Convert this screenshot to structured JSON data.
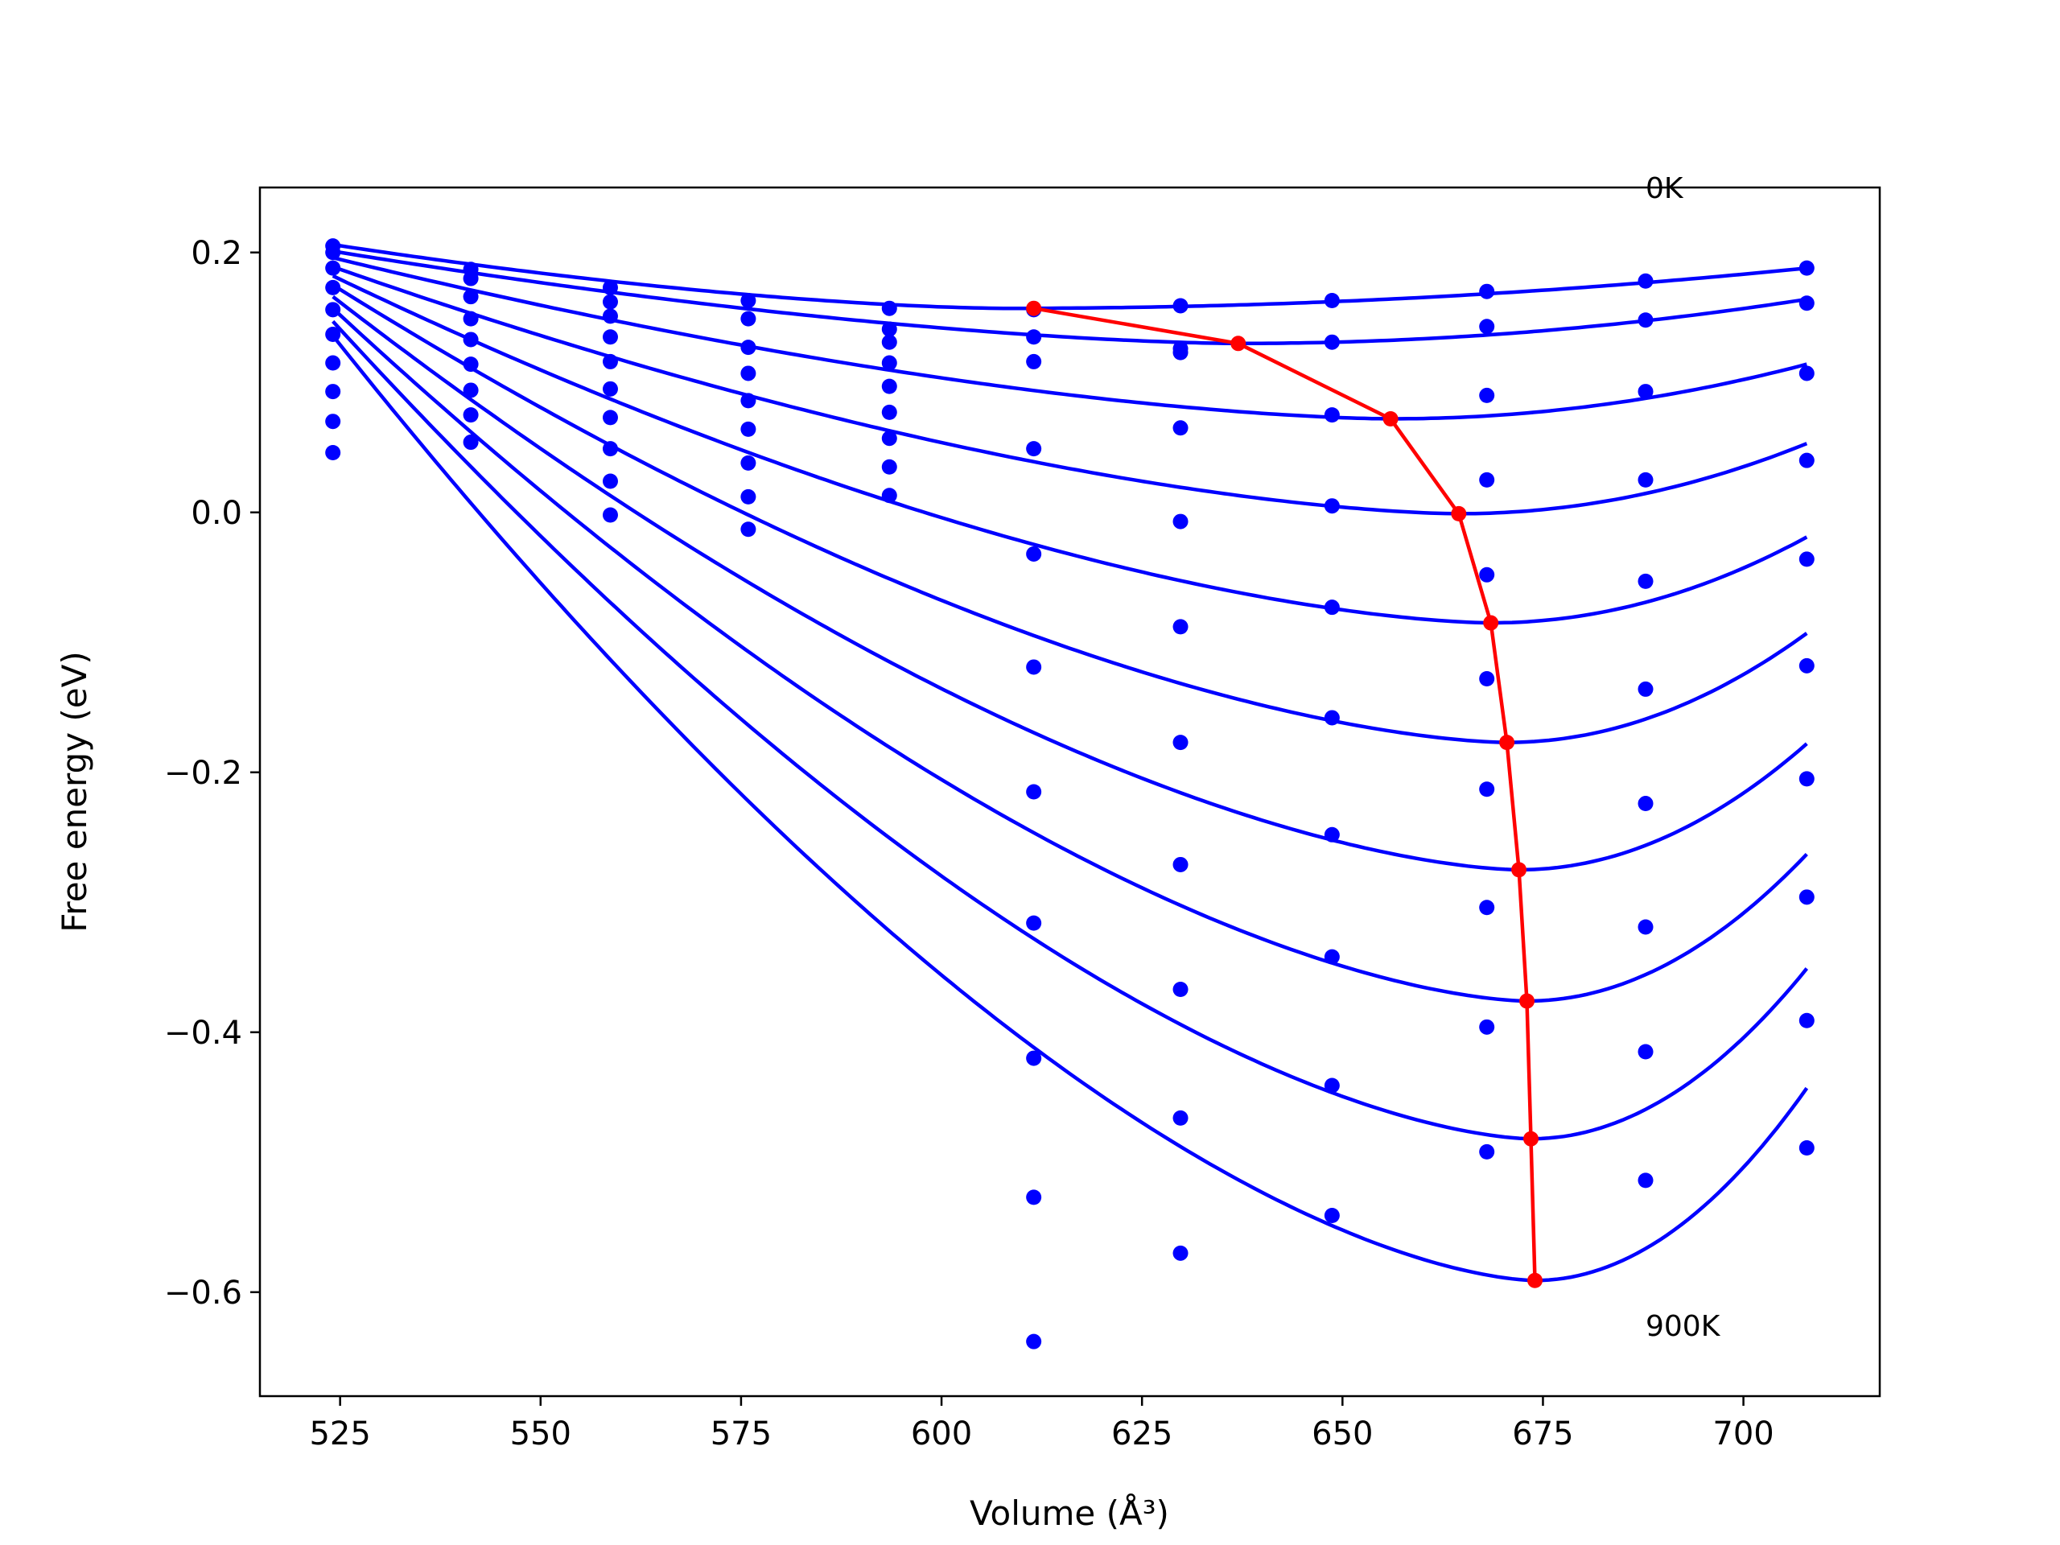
{
  "chart_data": {
    "type": "line",
    "xlabel": "Volume (Å³)",
    "ylabel": "Free energy (eV)",
    "xlim": [
      515,
      717
    ],
    "ylim": [
      -0.68,
      0.25
    ],
    "xticks": [
      525,
      550,
      575,
      600,
      625,
      650,
      675,
      700
    ],
    "yticks": [
      -0.6,
      -0.4,
      -0.2,
      0.0,
      0.2
    ],
    "xtick_labels": [
      "525",
      "550",
      "575",
      "600",
      "625",
      "650",
      "675",
      "700"
    ],
    "ytick_labels": [
      "−0.6",
      "−0.4",
      "−0.2",
      "0.0",
      "0.2"
    ],
    "annotations": [
      {
        "text": "0K",
        "x": 689,
        "y": 0.24
      },
      {
        "text": "900K",
        "x": 689,
        "y": -0.64
      }
    ],
    "colors": {
      "curves": "#0000ff",
      "points": "#0000ff",
      "minima": "#ff0000"
    },
    "x": [
      524.1,
      541.3,
      558.7,
      575.9,
      593.5,
      611.5,
      629.8,
      648.7,
      668.0,
      687.8,
      707.9
    ],
    "series": [
      {
        "values": [
          0.205,
          0.187,
          0.173,
          0.163,
          0.157,
          0.156,
          0.159,
          0.163,
          0.17,
          0.178,
          0.188
        ]
      },
      {
        "values": [
          0.2,
          0.18,
          0.162,
          0.149,
          0.141,
          0.135,
          0.126,
          0.131,
          0.143,
          0.148,
          0.161
        ]
      },
      {
        "values": [
          0.188,
          0.166,
          0.151,
          0.127,
          0.131,
          0.116,
          0.123,
          0.075,
          0.09,
          0.093,
          0.107
        ]
      },
      {
        "values": [
          0.173,
          0.149,
          0.135,
          0.107,
          0.115,
          0.049,
          0.065,
          0.005,
          0.025,
          0.025,
          0.04
        ]
      },
      {
        "values": [
          0.156,
          0.133,
          0.116,
          0.086,
          0.097,
          -0.032,
          -0.007,
          -0.073,
          -0.048,
          -0.053,
          -0.036
        ]
      },
      {
        "values": [
          0.137,
          0.114,
          0.095,
          0.064,
          0.077,
          -0.119,
          -0.088,
          -0.158,
          -0.128,
          -0.136,
          -0.118
        ]
      },
      {
        "values": [
          0.115,
          0.094,
          0.073,
          0.038,
          0.057,
          -0.215,
          -0.177,
          -0.248,
          -0.213,
          -0.224,
          -0.205
        ]
      },
      {
        "values": [
          0.093,
          0.075,
          0.049,
          0.012,
          0.035,
          -0.316,
          -0.271,
          -0.342,
          -0.304,
          -0.319,
          -0.296
        ]
      },
      {
        "values": [
          0.07,
          0.054,
          0.024,
          -0.013,
          0.013,
          -0.42,
          -0.367,
          -0.441,
          -0.396,
          -0.415,
          -0.391
        ]
      },
      {
        "values": [
          0.046,
          null,
          -0.002,
          null,
          null,
          -0.527,
          -0.466,
          -0.541,
          -0.492,
          -0.514,
          -0.489
        ]
      },
      {
        "values": [
          null,
          null,
          null,
          null,
          null,
          -0.638,
          -0.57,
          null,
          null,
          null,
          null
        ]
      }
    ],
    "fit_curves": [
      {
        "vmin": 608,
        "fmin": 0.157,
        "end": 0.188
      },
      {
        "vmin": 637,
        "fmin": 0.13,
        "end": 0.164
      },
      {
        "vmin": 656,
        "fmin": 0.072,
        "end": 0.114
      },
      {
        "vmin": 664.5,
        "fmin": -0.001,
        "end": 0.053
      },
      {
        "vmin": 668.5,
        "fmin": -0.085,
        "end": -0.019
      },
      {
        "vmin": 670.5,
        "fmin": -0.177,
        "end": -0.093
      },
      {
        "vmin": 672,
        "fmin": -0.275,
        "end": -0.178
      },
      {
        "vmin": 673,
        "fmin": -0.376,
        "end": -0.263
      },
      {
        "vmin": 673.5,
        "fmin": -0.482,
        "end": -0.351
      },
      {
        "vmin": 674,
        "fmin": -0.591,
        "end": -0.443
      }
    ],
    "curve_start": [
      0.206,
      0.201,
      0.196,
      0.189,
      0.182,
      0.175,
      0.166,
      0.157,
      0.147,
      0.136
    ],
    "minima": {
      "x": [
        611.5,
        637,
        656,
        664.5,
        668.5,
        670.5,
        672,
        673,
        673.5,
        674
      ],
      "y": [
        0.157,
        0.13,
        0.072,
        -0.001,
        -0.085,
        -0.177,
        -0.275,
        -0.376,
        -0.482,
        -0.591
      ]
    }
  }
}
